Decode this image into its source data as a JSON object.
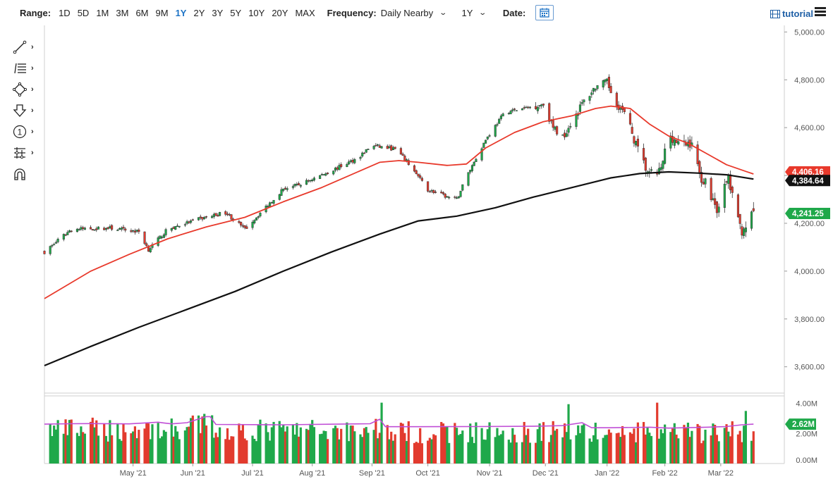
{
  "toolbar": {
    "range_label": "Range:",
    "ranges": [
      "1D",
      "5D",
      "1M",
      "3M",
      "6M",
      "9M",
      "1Y",
      "2Y",
      "3Y",
      "5Y",
      "10Y",
      "20Y",
      "MAX"
    ],
    "active_range": "1Y",
    "frequency_label": "Frequency:",
    "frequency_value": "Daily Nearby",
    "period_value": "1Y",
    "date_label": "Date:",
    "tutorial_label": "tutorial"
  },
  "tools": [
    "line-tool-icon",
    "fib-tool-icon",
    "shape-tool-icon",
    "arrow-tool-icon",
    "number-tool-icon",
    "pattern-tool-icon",
    "magnet-icon"
  ],
  "colors": {
    "up": "#1fa84a",
    "down": "#e23b2e",
    "ma50": "#e8392b",
    "ma200": "#111111",
    "vol_ma": "#c04fd6",
    "accent": "#1e74c6"
  },
  "chart_data": {
    "type": "candlestick",
    "price_axis": {
      "ticks": [
        3600,
        3800,
        4000,
        4200,
        4400,
        4600,
        4800,
        5000
      ],
      "tick_labels": [
        "3,600.00",
        "3,800.00",
        "4,000.00",
        "4,200.00",
        "4,400.00",
        "4,600.00",
        "4,800.00",
        "5,000.00"
      ],
      "ylim": [
        3490,
        5010
      ]
    },
    "volume_axis": {
      "tick_labels": [
        "0.00M",
        "2.00M",
        "4.00M"
      ],
      "ylim": [
        0,
        4.5
      ]
    },
    "x_labels": [
      "May '21",
      "Jun '21",
      "Jul '21",
      "Aug '21",
      "Sep '21",
      "Oct '21",
      "Nov '21",
      "Dec '21",
      "Jan '22",
      "Feb '22",
      "Mar '22"
    ],
    "label_days": [
      22,
      53,
      84,
      115,
      146,
      175,
      207,
      236,
      268,
      298,
      327
    ],
    "day_range": [
      -24,
      360
    ],
    "last_day": 344,
    "price_path": [
      [
        -24,
        4080
      ],
      [
        -10,
        4175
      ],
      [
        10,
        4180
      ],
      [
        25,
        4165
      ],
      [
        30,
        4090
      ],
      [
        40,
        4175
      ],
      [
        55,
        4215
      ],
      [
        70,
        4245
      ],
      [
        80,
        4175
      ],
      [
        90,
        4260
      ],
      [
        100,
        4345
      ],
      [
        108,
        4360
      ],
      [
        115,
        4385
      ],
      [
        125,
        4420
      ],
      [
        138,
        4470
      ],
      [
        146,
        4525
      ],
      [
        158,
        4510
      ],
      [
        165,
        4450
      ],
      [
        175,
        4340
      ],
      [
        185,
        4310
      ],
      [
        190,
        4300
      ],
      [
        195,
        4395
      ],
      [
        205,
        4550
      ],
      [
        215,
        4665
      ],
      [
        225,
        4680
      ],
      [
        235,
        4700
      ],
      [
        240,
        4600
      ],
      [
        245,
        4560
      ],
      [
        255,
        4700
      ],
      [
        262,
        4770
      ],
      [
        268,
        4790
      ],
      [
        272,
        4710
      ],
      [
        278,
        4650
      ],
      [
        285,
        4480
      ],
      [
        290,
        4400
      ],
      [
        296,
        4420
      ],
      [
        300,
        4580
      ],
      [
        306,
        4520
      ],
      [
        312,
        4540
      ],
      [
        316,
        4400
      ],
      [
        320,
        4360
      ],
      [
        325,
        4260
      ],
      [
        331,
        4390
      ],
      [
        335,
        4230
      ],
      [
        338,
        4170
      ],
      [
        344,
        4241
      ]
    ],
    "ma50": [
      [
        -24,
        3885
      ],
      [
        0,
        4000
      ],
      [
        20,
        4070
      ],
      [
        40,
        4135
      ],
      [
        60,
        4185
      ],
      [
        80,
        4225
      ],
      [
        100,
        4290
      ],
      [
        120,
        4350
      ],
      [
        140,
        4420
      ],
      [
        150,
        4455
      ],
      [
        160,
        4462
      ],
      [
        170,
        4455
      ],
      [
        185,
        4442
      ],
      [
        195,
        4448
      ],
      [
        205,
        4515
      ],
      [
        220,
        4580
      ],
      [
        235,
        4625
      ],
      [
        250,
        4650
      ],
      [
        262,
        4680
      ],
      [
        270,
        4690
      ],
      [
        280,
        4680
      ],
      [
        290,
        4615
      ],
      [
        300,
        4565
      ],
      [
        310,
        4535
      ],
      [
        320,
        4490
      ],
      [
        330,
        4445
      ],
      [
        340,
        4417
      ],
      [
        344,
        4406
      ]
    ],
    "ma200": [
      [
        -24,
        3605
      ],
      [
        0,
        3685
      ],
      [
        25,
        3765
      ],
      [
        50,
        3840
      ],
      [
        75,
        3915
      ],
      [
        100,
        4000
      ],
      [
        125,
        4080
      ],
      [
        150,
        4155
      ],
      [
        170,
        4210
      ],
      [
        190,
        4230
      ],
      [
        210,
        4265
      ],
      [
        230,
        4310
      ],
      [
        250,
        4350
      ],
      [
        270,
        4390
      ],
      [
        285,
        4408
      ],
      [
        300,
        4415
      ],
      [
        315,
        4410
      ],
      [
        330,
        4403
      ],
      [
        344,
        4385
      ]
    ],
    "vol_ma": [
      [
        -24,
        2.62
      ],
      [
        -10,
        2.65
      ],
      [
        0,
        2.66
      ],
      [
        20,
        2.64
      ],
      [
        35,
        2.75
      ],
      [
        38,
        2.7
      ],
      [
        42,
        2.64
      ],
      [
        50,
        2.72
      ],
      [
        60,
        3.12
      ],
      [
        62,
        3.12
      ],
      [
        65,
        2.6
      ],
      [
        100,
        2.58
      ],
      [
        145,
        2.65
      ],
      [
        150,
        2.95
      ],
      [
        153,
        2.45
      ],
      [
        170,
        2.45
      ],
      [
        200,
        2.46
      ],
      [
        230,
        2.48
      ],
      [
        245,
        2.52
      ],
      [
        255,
        2.72
      ],
      [
        260,
        2.38
      ],
      [
        270,
        2.38
      ],
      [
        290,
        2.42
      ],
      [
        300,
        2.36
      ],
      [
        320,
        2.42
      ],
      [
        330,
        2.46
      ],
      [
        338,
        2.58
      ],
      [
        344,
        2.62
      ]
    ],
    "vol_spikes": [
      [
        110,
        3.7
      ],
      [
        151,
        4.05
      ],
      [
        248,
        3.95
      ],
      [
        294,
        4.05
      ],
      [
        320,
        3.2
      ],
      [
        340,
        3.5
      ],
      [
        342,
        3.8
      ]
    ],
    "badges": {
      "ma50": {
        "value": 4406.16,
        "label": "4,406.16"
      },
      "ma200": {
        "value": 4384.64,
        "label": "4,384.64"
      },
      "last": {
        "value": 4241.25,
        "label": "4,241.25"
      },
      "volume": {
        "value": 2.62,
        "label": "2.62M"
      }
    }
  }
}
